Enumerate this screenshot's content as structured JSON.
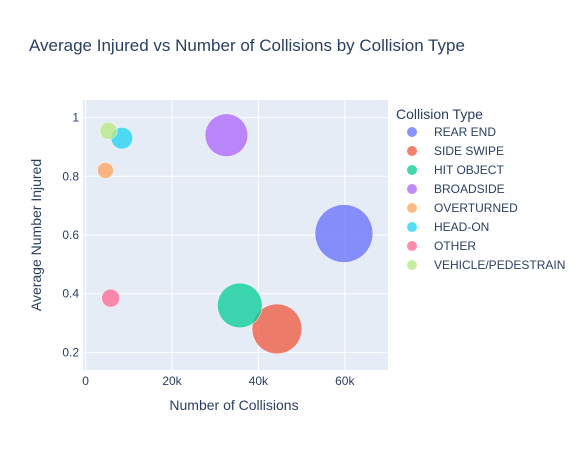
{
  "chart_data": {
    "type": "scatter",
    "title": "Average Injured vs Number of Collisions by Collision Type",
    "xlabel": "Number of Collisions",
    "ylabel": "Average Number Injured",
    "xlim": [
      -600,
      70000
    ],
    "ylim": [
      0.14,
      1.06
    ],
    "x_ticks": [
      0,
      20000,
      40000,
      60000
    ],
    "x_tick_labels": [
      "0",
      "20k",
      "40k",
      "60k"
    ],
    "y_ticks": [
      0.2,
      0.4,
      0.6,
      0.8,
      1.0
    ],
    "y_tick_labels": [
      "0.2",
      "0.4",
      "0.6",
      "0.8",
      "1"
    ],
    "grid": true,
    "plot_background": "#e5ecf6",
    "legend_title": "Collision Type",
    "legend_position": "right",
    "bubble_size_encodes": "number of collisions",
    "series": [
      {
        "name": "REAR END",
        "color": "#636efa",
        "x": 59800,
        "y": 0.605
      },
      {
        "name": "SIDE SWIPE",
        "color": "#ef553b",
        "x": 44300,
        "y": 0.28
      },
      {
        "name": "HIT OBJECT",
        "color": "#00cc96",
        "x": 35700,
        "y": 0.36
      },
      {
        "name": "BROADSIDE",
        "color": "#ab63fa",
        "x": 32600,
        "y": 0.94
      },
      {
        "name": "OVERTURNED",
        "color": "#ffa15a",
        "x": 4600,
        "y": 0.82
      },
      {
        "name": "HEAD-ON",
        "color": "#19d3f3",
        "x": 8400,
        "y": 0.93
      },
      {
        "name": "OTHER",
        "color": "#ff6692",
        "x": 5800,
        "y": 0.385
      },
      {
        "name": "VEHICLE/PEDESTRAIN",
        "color": "#b6e880",
        "x": 5300,
        "y": 0.955
      }
    ]
  }
}
